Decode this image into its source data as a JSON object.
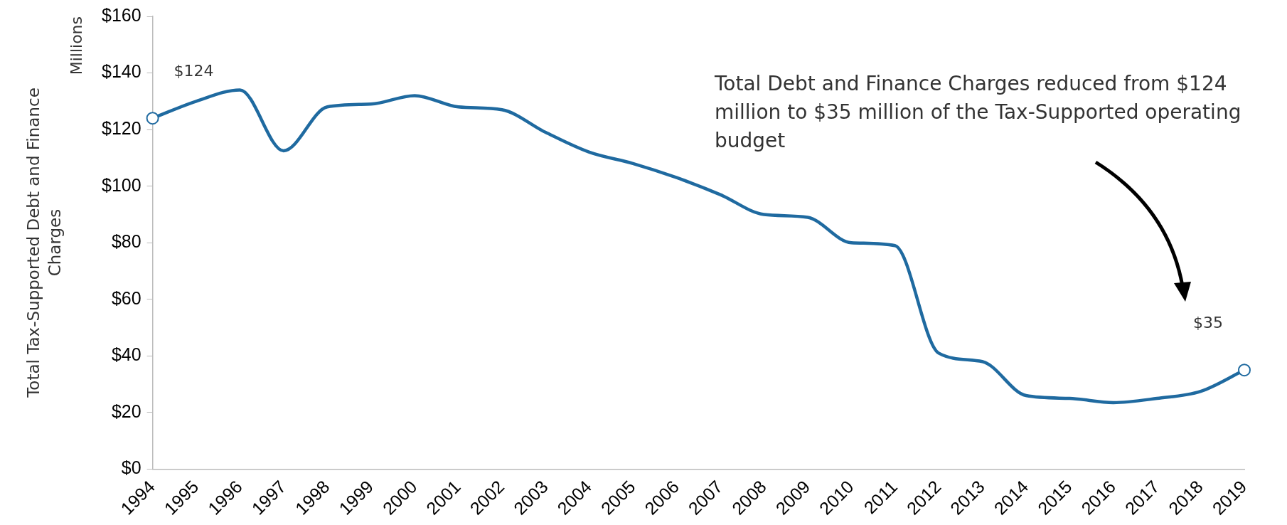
{
  "chart_data": {
    "type": "line",
    "ylabel": "Total Tax-Supported Debt and Finance Charges",
    "categories": [
      "1994",
      "1995",
      "1996",
      "1997",
      "1998",
      "1999",
      "2000",
      "2001",
      "2002",
      "2003",
      "2004",
      "2005",
      "2006",
      "2007",
      "2008",
      "2009",
      "2010",
      "2011",
      "2012",
      "2013",
      "2014",
      "2015",
      "2016",
      "2017",
      "2018",
      "2019"
    ],
    "series": [
      {
        "color": "#1f6aa0",
        "values": [
          124,
          130,
          134,
          112.5,
          128,
          129,
          132,
          128,
          127,
          119,
          112,
          108,
          103,
          97,
          90,
          89,
          80,
          79,
          41,
          38,
          26,
          25,
          23.5,
          25,
          27.5,
          35
        ],
        "value_labels": [
          "$124",
          null,
          null,
          null,
          null,
          null,
          null,
          null,
          null,
          null,
          null,
          null,
          null,
          null,
          null,
          null,
          null,
          null,
          null,
          null,
          null,
          null,
          null,
          null,
          null,
          "$35"
        ]
      }
    ],
    "ylim": [
      0,
      160
    ],
    "yticks": [
      {
        "value": 0,
        "label": "$0"
      },
      {
        "value": 20,
        "label": "$20"
      },
      {
        "value": 40,
        "label": "$40"
      },
      {
        "value": 60,
        "label": "$60"
      },
      {
        "value": 80,
        "label": "$80"
      },
      {
        "value": 100,
        "label": "$100"
      },
      {
        "value": 120,
        "label": "$120"
      },
      {
        "value": 140,
        "label": "$140"
      },
      {
        "value": 160,
        "label": "$160"
      }
    ],
    "grid": false,
    "legend": false,
    "annotations": [
      "Millions",
      "Total Debt and Finance Charges reduced from $124 million to $35 million of the Tax-Supported operating budget"
    ]
  }
}
